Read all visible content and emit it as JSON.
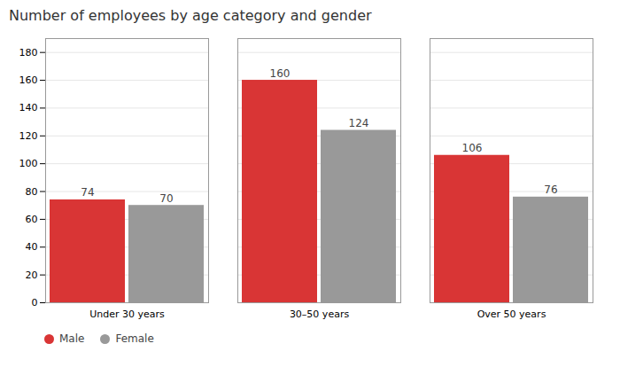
{
  "chart_data": {
    "type": "bar",
    "title": "Number of employees by age category and gender",
    "categories": [
      "Under 30 years",
      "30–50 years",
      "Over 50 years"
    ],
    "series": [
      {
        "name": "Male",
        "color": "#d93535",
        "values": [
          74,
          160,
          106
        ]
      },
      {
        "name": "Female",
        "color": "#999999",
        "values": [
          70,
          124,
          76
        ]
      }
    ],
    "ylim": [
      0,
      190
    ],
    "yticks": [
      0,
      20,
      40,
      60,
      80,
      100,
      120,
      140,
      160,
      180
    ],
    "grid": true,
    "data_labels": true,
    "legend": "bottom"
  }
}
